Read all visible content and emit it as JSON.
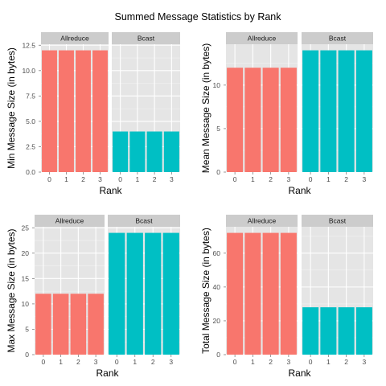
{
  "title": "Summed Message Statistics by Rank",
  "colors": {
    "Allreduce": "#F8766D",
    "Bcast": "#00BFC4"
  },
  "chart_data": [
    {
      "type": "bar",
      "facets": [
        "Allreduce",
        "Bcast"
      ],
      "categories": [
        "0",
        "1",
        "2",
        "3"
      ],
      "series": [
        {
          "name": "Allreduce",
          "values": [
            12,
            12,
            12,
            12
          ]
        },
        {
          "name": "Bcast",
          "values": [
            4,
            4,
            4,
            4
          ]
        }
      ],
      "xlabel": "Rank",
      "ylabel": "Min Message Size (in bytes)",
      "ylim": [
        0,
        12.6
      ],
      "yticks": [
        0,
        2.5,
        5,
        7.5,
        10,
        12.5
      ],
      "ytick_labels": [
        "0.0",
        "2.5",
        "5.0",
        "7.5",
        "10.0",
        "12.5"
      ]
    },
    {
      "type": "bar",
      "facets": [
        "Allreduce",
        "Bcast"
      ],
      "categories": [
        "0",
        "1",
        "2",
        "3"
      ],
      "series": [
        {
          "name": "Allreduce",
          "values": [
            12,
            12,
            12,
            12
          ]
        },
        {
          "name": "Bcast",
          "values": [
            14,
            14,
            14,
            14
          ]
        }
      ],
      "xlabel": "Rank",
      "ylabel": "Mean Message Size (in bytes)",
      "ylim": [
        0,
        14.7
      ],
      "yticks": [
        0,
        5,
        10
      ],
      "ytick_labels": [
        "0",
        "5",
        "10"
      ]
    },
    {
      "type": "bar",
      "facets": [
        "Allreduce",
        "Bcast"
      ],
      "categories": [
        "0",
        "1",
        "2",
        "3"
      ],
      "series": [
        {
          "name": "Allreduce",
          "values": [
            12,
            12,
            12,
            12
          ]
        },
        {
          "name": "Bcast",
          "values": [
            24,
            24,
            24,
            24
          ]
        }
      ],
      "xlabel": "Rank",
      "ylabel": "Max Message Size (in bytes)",
      "ylim": [
        0,
        25.2
      ],
      "yticks": [
        0,
        5,
        10,
        15,
        20,
        25
      ],
      "ytick_labels": [
        "0",
        "5",
        "10",
        "15",
        "20",
        "25"
      ]
    },
    {
      "type": "bar",
      "facets": [
        "Allreduce",
        "Bcast"
      ],
      "categories": [
        "0",
        "1",
        "2",
        "3"
      ],
      "series": [
        {
          "name": "Allreduce",
          "values": [
            72,
            72,
            72,
            72
          ]
        },
        {
          "name": "Bcast",
          "values": [
            28,
            28,
            28,
            28
          ]
        }
      ],
      "xlabel": "Rank",
      "ylabel": "Total Message Size (in bytes)",
      "ylim": [
        0,
        75.6
      ],
      "yticks": [
        0,
        20,
        40,
        60
      ],
      "ytick_labels": [
        "0",
        "20",
        "40",
        "60"
      ]
    }
  ]
}
